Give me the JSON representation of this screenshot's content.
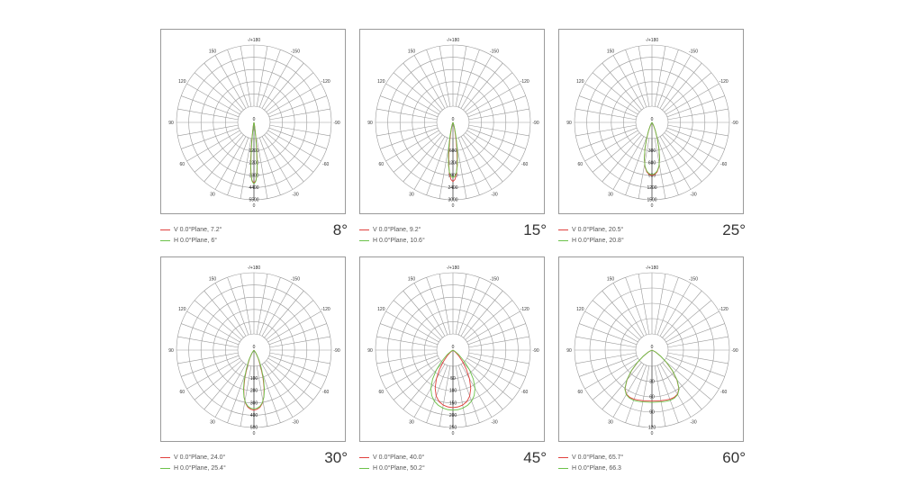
{
  "colors": {
    "v_plane": "#e0403c",
    "h_plane": "#6cc24a",
    "grid": "#9a9a9a",
    "axis": "#333333"
  },
  "chart_data": [
    {
      "type": "polar-line",
      "beam_label": "8°",
      "angle_labels": [
        "-/+180",
        "-150",
        "150",
        "-120",
        "120",
        "-90",
        "90",
        "-60",
        "60",
        "-30",
        "30",
        "0"
      ],
      "center_label": "0",
      "radial_labels": [
        "1200",
        "2200",
        "3300",
        "4400",
        "5500"
      ],
      "rmax": 5500,
      "series": [
        {
          "legend": "V 0.0°Plane,  7.2°",
          "points": [
            [
              0,
              5400
            ],
            [
              1,
              5350
            ],
            [
              2,
              5200
            ],
            [
              3,
              4800
            ],
            [
              4,
              4200
            ],
            [
              5,
              3200
            ],
            [
              6,
              2300
            ],
            [
              7,
              1500
            ],
            [
              8,
              900
            ],
            [
              10,
              400
            ],
            [
              14,
              120
            ],
            [
              20,
              30
            ],
            [
              30,
              0
            ]
          ]
        },
        {
          "legend": "H 0.0°Plane,  6°",
          "points": [
            [
              0,
              5500
            ],
            [
              1,
              5420
            ],
            [
              2,
              5250
            ],
            [
              3,
              4800
            ],
            [
              4,
              4000
            ],
            [
              5,
              2900
            ],
            [
              6,
              1900
            ],
            [
              7,
              1200
            ],
            [
              8,
              700
            ],
            [
              10,
              300
            ],
            [
              14,
              100
            ],
            [
              20,
              20
            ],
            [
              30,
              0
            ]
          ]
        }
      ]
    },
    {
      "type": "polar-line",
      "beam_label": "15°",
      "angle_labels": [
        "-/+180",
        "-150",
        "150",
        "-120",
        "120",
        "-90",
        "90",
        "-60",
        "60",
        "-30",
        "30",
        "0"
      ],
      "center_label": "0",
      "radial_labels": [
        "600",
        "1200",
        "1800",
        "2400",
        "3000"
      ],
      "rmax": 3000,
      "series": [
        {
          "legend": "V 0.0°Plane,  9.2°",
          "points": [
            [
              0,
              2900
            ],
            [
              2,
              2800
            ],
            [
              4,
              2500
            ],
            [
              6,
              2000
            ],
            [
              8,
              1400
            ],
            [
              10,
              900
            ],
            [
              12,
              500
            ],
            [
              15,
              250
            ],
            [
              20,
              80
            ],
            [
              30,
              10
            ],
            [
              40,
              0
            ]
          ]
        },
        {
          "legend": "H 0.0°Plane,  10.6°",
          "points": [
            [
              0,
              2700
            ],
            [
              2,
              2650
            ],
            [
              4,
              2450
            ],
            [
              6,
              2100
            ],
            [
              8,
              1600
            ],
            [
              10,
              1100
            ],
            [
              12,
              700
            ],
            [
              15,
              350
            ],
            [
              20,
              120
            ],
            [
              30,
              20
            ],
            [
              40,
              0
            ]
          ]
        }
      ]
    },
    {
      "type": "polar-line",
      "beam_label": "25°",
      "angle_labels": [
        "-/+180",
        "-150",
        "150",
        "-120",
        "120",
        "-90",
        "90",
        "-60",
        "60",
        "-30",
        "30",
        "0"
      ],
      "center_label": "0",
      "radial_labels": [
        "300",
        "600",
        "900",
        "1200",
        "1500"
      ],
      "rmax": 1500,
      "series": [
        {
          "legend": "V 0.0°Plane,  20.5°",
          "points": [
            [
              0,
              1300
            ],
            [
              3,
              1280
            ],
            [
              6,
              1220
            ],
            [
              9,
              1100
            ],
            [
              12,
              900
            ],
            [
              15,
              650
            ],
            [
              18,
              420
            ],
            [
              22,
              220
            ],
            [
              26,
              100
            ],
            [
              32,
              30
            ],
            [
              40,
              0
            ]
          ]
        },
        {
          "legend": "H 0.0°Plane,  20.8°",
          "points": [
            [
              0,
              1280
            ],
            [
              3,
              1260
            ],
            [
              6,
              1200
            ],
            [
              9,
              1090
            ],
            [
              12,
              900
            ],
            [
              15,
              660
            ],
            [
              18,
              430
            ],
            [
              22,
              230
            ],
            [
              26,
              110
            ],
            [
              32,
              35
            ],
            [
              40,
              0
            ]
          ]
        }
      ]
    },
    {
      "type": "polar-line",
      "beam_label": "30°",
      "angle_labels": [
        "-/+180",
        "-150",
        "150",
        "-120",
        "120",
        "-90",
        "90",
        "-60",
        "60",
        "-30",
        "30",
        "0"
      ],
      "center_label": "0",
      "radial_labels": [
        "100",
        "200",
        "300",
        "400",
        "500"
      ],
      "rmax": 500,
      "series": [
        {
          "legend": "V 0.0°Plane,  24.0°",
          "points": [
            [
              0,
              490
            ],
            [
              3,
              485
            ],
            [
              6,
              470
            ],
            [
              9,
              440
            ],
            [
              12,
              390
            ],
            [
              15,
              320
            ],
            [
              18,
              240
            ],
            [
              22,
              150
            ],
            [
              27,
              80
            ],
            [
              33,
              30
            ],
            [
              40,
              0
            ]
          ]
        },
        {
          "legend": "H 0.0°Plane,  25.4°",
          "points": [
            [
              0,
              480
            ],
            [
              3,
              476
            ],
            [
              6,
              462
            ],
            [
              9,
              436
            ],
            [
              12,
              392
            ],
            [
              15,
              330
            ],
            [
              18,
              255
            ],
            [
              22,
              165
            ],
            [
              27,
              90
            ],
            [
              33,
              35
            ],
            [
              40,
              0
            ]
          ]
        }
      ]
    },
    {
      "type": "polar-line",
      "beam_label": "45°",
      "angle_labels": [
        "-/+180",
        "-150",
        "150",
        "-120",
        "120",
        "-90",
        "90",
        "-60",
        "60",
        "-30",
        "30",
        "0"
      ],
      "center_label": "0",
      "radial_labels": [
        "50",
        "100",
        "150",
        "200",
        "250"
      ],
      "rmax": 250,
      "series": [
        {
          "legend": "V 0.0°Plane,  40.0°",
          "points": [
            [
              0,
              235
            ],
            [
              5,
              233
            ],
            [
              10,
              228
            ],
            [
              15,
              218
            ],
            [
              20,
              200
            ],
            [
              25,
              172
            ],
            [
              30,
              135
            ],
            [
              35,
              95
            ],
            [
              40,
              60
            ],
            [
              45,
              33
            ],
            [
              50,
              15
            ],
            [
              60,
              0
            ]
          ]
        },
        {
          "legend": "H 0.0°Plane,  50.2°",
          "points": [
            [
              0,
              245
            ],
            [
              5,
              244
            ],
            [
              10,
              240
            ],
            [
              15,
              233
            ],
            [
              20,
              222
            ],
            [
              25,
              205
            ],
            [
              30,
              180
            ],
            [
              35,
              145
            ],
            [
              40,
              105
            ],
            [
              45,
              65
            ],
            [
              52,
              30
            ],
            [
              60,
              8
            ],
            [
              70,
              0
            ]
          ]
        }
      ]
    },
    {
      "type": "polar-line",
      "beam_label": "60°",
      "angle_labels": [
        "-/+180",
        "-150",
        "150",
        "-120",
        "120",
        "-90",
        "90",
        "-60",
        "60",
        "-30",
        "30",
        "0"
      ],
      "center_label": "0",
      "radial_labels": [
        "30",
        "60",
        "90",
        "120"
      ],
      "rmax": 150,
      "series": [
        {
          "legend": "V 0.0°Plane,  65.7°",
          "points": [
            [
              0,
              125
            ],
            [
              5,
              125
            ],
            [
              10,
              126
            ],
            [
              15,
              127
            ],
            [
              20,
              128
            ],
            [
              25,
              128
            ],
            [
              30,
              125
            ],
            [
              35,
              115
            ],
            [
              40,
              95
            ],
            [
              45,
              70
            ],
            [
              50,
              45
            ],
            [
              55,
              25
            ],
            [
              62,
              10
            ],
            [
              70,
              0
            ]
          ]
        },
        {
          "legend": "H 0.0°Plane,  66.3",
          "points": [
            [
              0,
              128
            ],
            [
              5,
              128
            ],
            [
              10,
              129
            ],
            [
              15,
              130
            ],
            [
              20,
              131
            ],
            [
              25,
              130
            ],
            [
              30,
              126
            ],
            [
              35,
              116
            ],
            [
              40,
              96
            ],
            [
              45,
              71
            ],
            [
              50,
              46
            ],
            [
              55,
              26
            ],
            [
              62,
              10
            ],
            [
              70,
              0
            ]
          ]
        }
      ]
    }
  ]
}
